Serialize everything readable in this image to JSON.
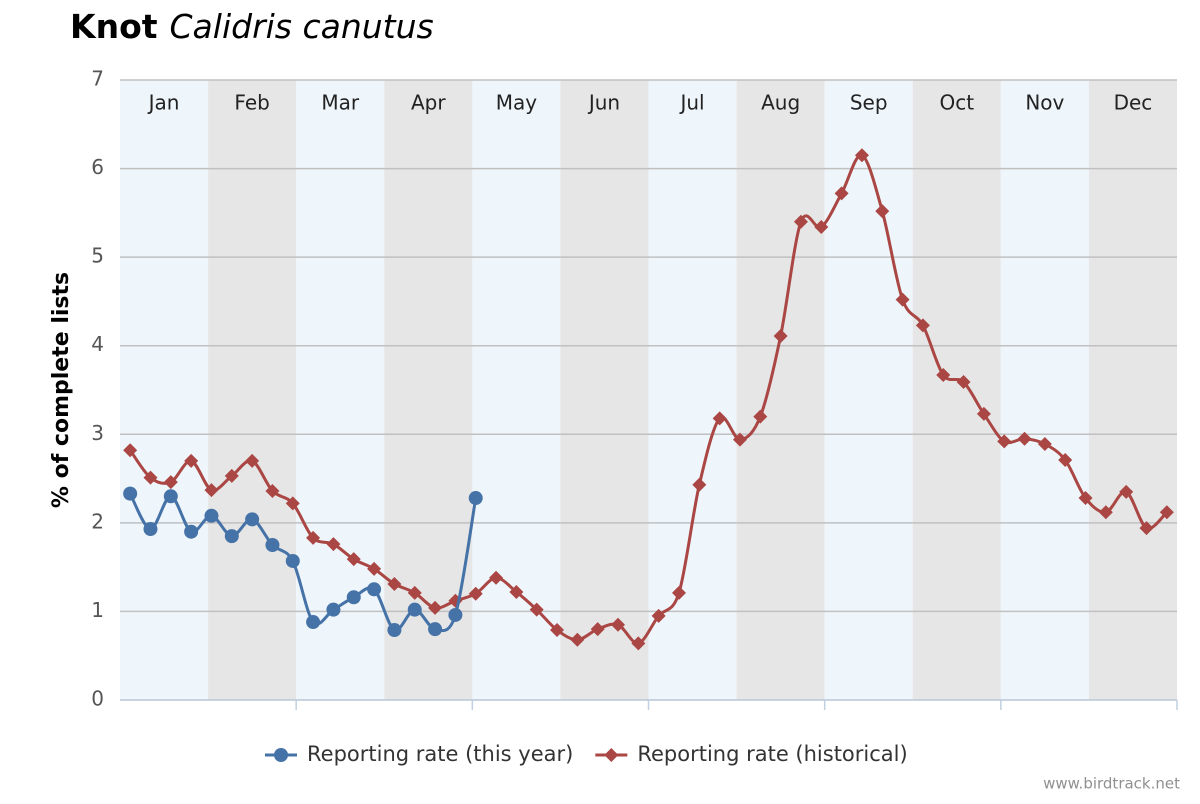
{
  "chart_data": {
    "type": "line",
    "title": {
      "common": "Knot",
      "scientific": "Calidris canutus"
    },
    "y_label": "% of complete lists",
    "months": [
      "Jan",
      "Feb",
      "Mar",
      "Apr",
      "May",
      "Jun",
      "Jul",
      "Aug",
      "Sep",
      "Oct",
      "Nov",
      "Dec"
    ],
    "month_colors": [
      "#eef5fb",
      "#e6e6e6"
    ],
    "x": [
      1,
      2,
      3,
      4,
      5,
      6,
      7,
      8,
      9,
      10,
      11,
      12,
      13,
      14,
      15,
      16,
      17,
      18,
      19,
      20,
      21,
      22,
      23,
      24,
      25,
      26,
      27,
      28,
      29,
      30,
      31,
      32,
      33,
      34,
      35,
      36,
      37,
      38,
      39,
      40,
      41,
      42,
      43,
      44,
      45,
      46,
      47,
      48,
      49,
      50,
      51,
      52
    ],
    "xlim": [
      0.5,
      52.5
    ],
    "ylim": [
      0,
      7
    ],
    "yticks": [
      0,
      1,
      2,
      3,
      4,
      5,
      6,
      7
    ],
    "grid": true,
    "legend": "bottom",
    "credits": "www.birdtrack.net",
    "series": [
      {
        "name": "Reporting rate (this year)",
        "color": "#4572a7",
        "marker": "circle",
        "values": [
          2.33,
          1.93,
          2.3,
          1.9,
          2.08,
          1.85,
          2.04,
          1.75,
          1.57,
          0.88,
          1.02,
          1.16,
          1.25,
          0.79,
          1.02,
          0.8,
          0.96,
          2.28,
          null,
          null,
          null,
          null,
          null,
          null,
          null,
          null,
          null,
          null,
          null,
          null,
          null,
          null,
          null,
          null,
          null,
          null,
          null,
          null,
          null,
          null,
          null,
          null,
          null,
          null,
          null,
          null,
          null,
          null,
          null,
          null,
          null,
          null
        ]
      },
      {
        "name": "Reporting rate (historical)",
        "color": "#aa4643",
        "marker": "diamond",
        "values": [
          2.82,
          2.51,
          2.46,
          2.7,
          2.37,
          2.53,
          2.7,
          2.36,
          2.22,
          1.83,
          1.76,
          1.59,
          1.48,
          1.31,
          1.21,
          1.04,
          1.12,
          1.2,
          1.38,
          1.22,
          1.02,
          0.79,
          0.68,
          0.8,
          0.85,
          0.64,
          0.95,
          1.21,
          2.43,
          3.18,
          2.94,
          3.2,
          4.11,
          5.4,
          5.34,
          5.72,
          6.15,
          5.52,
          4.52,
          4.23,
          3.67,
          3.59,
          3.23,
          2.92,
          2.95,
          2.89,
          2.71,
          2.28,
          2.12,
          2.35,
          1.94,
          2.12
        ]
      }
    ]
  }
}
